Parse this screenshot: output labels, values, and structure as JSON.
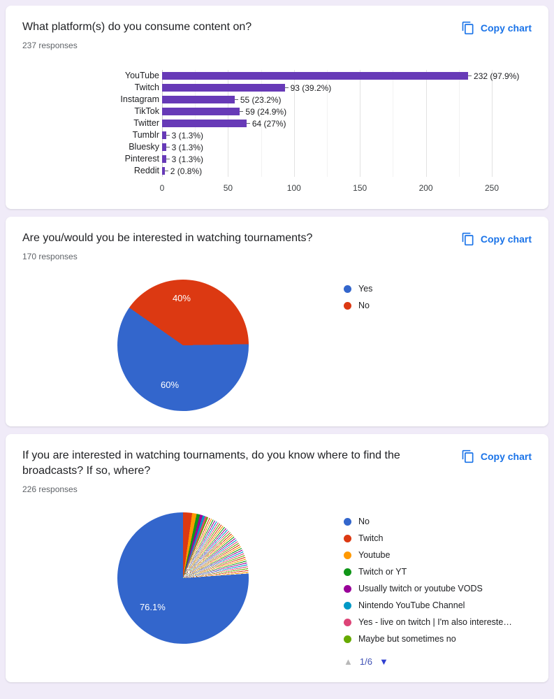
{
  "page": {
    "background": "#f0ebf8",
    "accent_blue": "#1a73e8"
  },
  "cards": [
    {
      "title": "What platform(s) do you consume content on?",
      "responses": "237 responses",
      "copy_label": "Copy chart"
    },
    {
      "title": "Are you/would you be interested in watching tournaments?",
      "responses": "170 responses",
      "copy_label": "Copy chart"
    },
    {
      "title": "If you are interested in watching tournaments, do you know where to find the broadcasts? If so, where?",
      "responses": "226 responses",
      "copy_label": "Copy chart",
      "pager": {
        "prev_icon": "▲",
        "page": "1/6",
        "next_icon": "▼"
      }
    }
  ],
  "chart_data": [
    {
      "type": "bar",
      "orientation": "horizontal",
      "title": "What platform(s) do you consume content on?",
      "total_responses": 237,
      "categories": [
        "YouTube",
        "Twitch",
        "Instagram",
        "TikTok",
        "Twitter",
        "Tumblr",
        "Bluesky",
        "Pinterest",
        "Reddit"
      ],
      "values": [
        232,
        93,
        55,
        59,
        64,
        3,
        3,
        3,
        2
      ],
      "value_labels": [
        "232 (97.9%)",
        "93 (39.2%)",
        "55 (23.2%)",
        "59 (24.9%)",
        "64 (27%)",
        "3 (1.3%)",
        "3 (1.3%)",
        "3 (1.3%)",
        "2 (0.8%)"
      ],
      "xlim": [
        0,
        250
      ],
      "xticks": [
        0,
        50,
        100,
        150,
        200,
        250
      ],
      "bar_color": "#673ab7",
      "grid": true
    },
    {
      "type": "pie",
      "title": "Are you/would you be interested in watching tournaments?",
      "total_responses": 170,
      "labels": [
        "Yes",
        "No"
      ],
      "values": [
        60,
        40
      ],
      "value_labels": [
        "60%",
        "40%"
      ],
      "colors": [
        "#3366cc",
        "#dc3912"
      ],
      "legend_position": "right"
    },
    {
      "type": "pie",
      "title": "If you are interested in watching tournaments, do you know where to find the broadcasts? If so, where?",
      "total_responses": 226,
      "labels": [
        "No",
        "Twitch",
        "Youtube",
        "Twitch or YT",
        "Usually twitch or youtube VODS",
        "Nintendo YouTube Channel",
        "Yes - live on twitch | I'm also intereste…",
        "Maybe but sometimes no"
      ],
      "values": [
        76.1,
        null,
        null,
        null,
        null,
        null,
        null,
        null
      ],
      "value_labels": [
        "76.1%"
      ],
      "colors": [
        "#3366cc",
        "#dc3912",
        "#ff9900",
        "#109618",
        "#990099",
        "#0099c6",
        "#dd4477",
        "#66aa00"
      ],
      "has_many_small_slices": true,
      "legend_position": "right",
      "legend_page": "1/6"
    }
  ]
}
